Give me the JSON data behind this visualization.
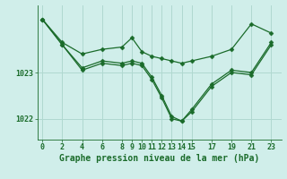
{
  "background_color": "#d0eeea",
  "grid_color": "#b0d8d0",
  "line_color": "#1a6b2a",
  "xlabel": "Graphe pression niveau de la mer (hPa)",
  "xticks": [
    0,
    2,
    4,
    6,
    8,
    9,
    10,
    11,
    12,
    13,
    14,
    15,
    17,
    19,
    21,
    23
  ],
  "yticks": [
    1022,
    1023
  ],
  "ylim": [
    1021.55,
    1024.45
  ],
  "xlim": [
    -0.5,
    24.0
  ],
  "series": [
    {
      "x": [
        0,
        2,
        4,
        6,
        8,
        9,
        10,
        11,
        12,
        13,
        14,
        15,
        17,
        19,
        21,
        23
      ],
      "y": [
        1024.15,
        1023.65,
        1023.4,
        1023.5,
        1023.55,
        1023.75,
        1023.45,
        1023.35,
        1023.3,
        1023.25,
        1023.2,
        1023.25,
        1023.35,
        1023.5,
        1024.05,
        1023.85
      ]
    },
    {
      "x": [
        0,
        2,
        4,
        6,
        8,
        9,
        10,
        11,
        12,
        13,
        14,
        15,
        17,
        19,
        21,
        23
      ],
      "y": [
        1024.15,
        1023.6,
        1023.1,
        1023.25,
        1023.2,
        1023.25,
        1023.2,
        1022.9,
        1022.5,
        1022.05,
        1021.95,
        1022.2,
        1022.75,
        1023.05,
        1023.0,
        1023.65
      ]
    },
    {
      "x": [
        0,
        2,
        4,
        6,
        8,
        9,
        10,
        11,
        12,
        13,
        14,
        15,
        17,
        19,
        21,
        23
      ],
      "y": [
        1024.15,
        1023.6,
        1023.05,
        1023.2,
        1023.15,
        1023.2,
        1023.15,
        1022.85,
        1022.45,
        1022.0,
        1021.95,
        1022.15,
        1022.7,
        1023.0,
        1022.95,
        1023.6
      ]
    }
  ],
  "title_fontsize": 7,
  "axis_fontsize": 6,
  "marker": "D",
  "markersize": 2.5,
  "linewidth": 0.9
}
